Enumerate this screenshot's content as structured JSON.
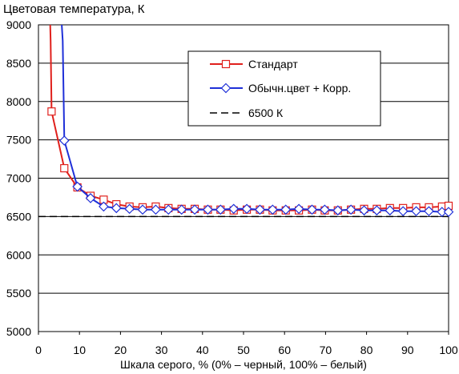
{
  "chart_data": {
    "type": "line",
    "title": "Цветовая температура, К",
    "xlabel": "Шкала серого, % (0% – черный, 100% – белый)",
    "ylabel": "",
    "xlim": [
      0,
      100
    ],
    "ylim": [
      5000,
      9000
    ],
    "xticks": [
      "0",
      "10",
      "20",
      "30",
      "40",
      "50",
      "60",
      "70",
      "80",
      "90",
      "100"
    ],
    "yticks": [
      "5000",
      "5500",
      "6000",
      "6500",
      "7000",
      "7500",
      "8000",
      "8500",
      "9000"
    ],
    "grid": "horizontal",
    "legend_position": "top-right",
    "series": [
      {
        "name": "Стандарт",
        "color": "#e0201c",
        "marker": "square",
        "x": [
          3.2,
          6.3,
          9.5,
          12.7,
          15.9,
          19.0,
          22.2,
          25.4,
          28.6,
          31.7,
          34.9,
          38.1,
          41.3,
          44.4,
          47.6,
          50.8,
          54.0,
          57.1,
          60.3,
          63.5,
          66.7,
          69.8,
          73.0,
          76.2,
          79.4,
          82.5,
          85.7,
          88.9,
          92.1,
          95.2,
          98.4,
          100
        ],
        "y": [
          7870,
          7130,
          6880,
          6770,
          6720,
          6660,
          6630,
          6620,
          6630,
          6610,
          6600,
          6600,
          6590,
          6590,
          6580,
          6590,
          6590,
          6580,
          6580,
          6580,
          6590,
          6580,
          6580,
          6590,
          6600,
          6600,
          6610,
          6610,
          6620,
          6620,
          6630,
          6640
        ]
      },
      {
        "name": "Обычн.цвет + Корр.",
        "color": "#1f30d8",
        "marker": "diamond",
        "x": [
          6.3,
          9.5,
          12.7,
          15.9,
          19.0,
          22.2,
          25.4,
          28.6,
          31.7,
          34.9,
          38.1,
          41.3,
          44.4,
          47.6,
          50.8,
          54.0,
          57.1,
          60.3,
          63.5,
          66.7,
          69.8,
          73.0,
          76.2,
          79.4,
          82.5,
          85.7,
          88.9,
          92.1,
          95.2,
          98.4,
          100
        ],
        "y": [
          7490,
          6890,
          6740,
          6630,
          6610,
          6600,
          6590,
          6590,
          6590,
          6590,
          6590,
          6590,
          6590,
          6600,
          6600,
          6590,
          6590,
          6590,
          6600,
          6590,
          6590,
          6580,
          6590,
          6580,
          6580,
          6580,
          6570,
          6570,
          6570,
          6560,
          6560
        ]
      },
      {
        "name": "6500 К",
        "color": "#000000",
        "marker": "none",
        "dashed": true,
        "x": [
          0,
          100
        ],
        "y": [
          6500,
          6500
        ]
      }
    ]
  }
}
